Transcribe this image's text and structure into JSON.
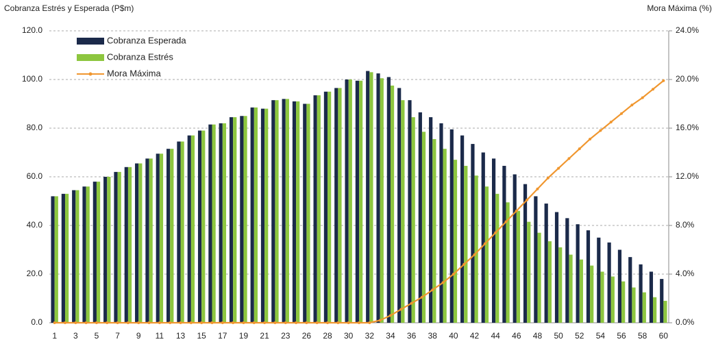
{
  "chart_data": {
    "type": "bar-line",
    "y_title": "Cobranza Estrés y Esperada (P$m)",
    "y2_title": "Mora Máxima (%)",
    "categories": [
      "1",
      null,
      "3",
      null,
      "5",
      null,
      "7",
      null,
      "9",
      null,
      "11",
      null,
      "13",
      null,
      "15",
      null,
      "17",
      null,
      "19",
      null,
      "21",
      null,
      "23",
      null,
      "26",
      null,
      "28",
      null,
      "30",
      null,
      "32",
      null,
      "34",
      null,
      "36",
      null,
      "38",
      null,
      "40",
      null,
      "42",
      null,
      "44",
      null,
      "46",
      null,
      "48",
      null,
      "50",
      null,
      "52",
      null,
      "54",
      null,
      "56",
      null,
      "58",
      null,
      "60"
    ],
    "series": [
      {
        "name": "Cobranza Esperada",
        "color": "#1b2a4a",
        "kind": "bar",
        "values": [
          52,
          53,
          54.5,
          56,
          58,
          60,
          62,
          64,
          65.5,
          67.5,
          69.5,
          71.5,
          74.5,
          77,
          79,
          81.5,
          82,
          84.5,
          85,
          88.5,
          88,
          91.5,
          92,
          91,
          90,
          93.5,
          95,
          96.5,
          100,
          99.5,
          103.5,
          102.5,
          101,
          96.5,
          91.5,
          86.5,
          84.5,
          82,
          79.5,
          77,
          73.5,
          70,
          67.5,
          64.5,
          61,
          57,
          52,
          49,
          45.5,
          43,
          40.5,
          38,
          35,
          33,
          30,
          27,
          24,
          21,
          18
        ]
      },
      {
        "name": "Cobranza Estrés",
        "color": "#8dc63f",
        "kind": "bar",
        "values": [
          52,
          53,
          54.5,
          56,
          58,
          60,
          62,
          64,
          65.5,
          67.5,
          69.5,
          71.5,
          74.5,
          77,
          79,
          81.5,
          82,
          84.5,
          85,
          88.5,
          88,
          91.5,
          92,
          91,
          90,
          93.5,
          95,
          96.5,
          100,
          99.5,
          103,
          100.5,
          97.5,
          91.5,
          84.5,
          78.5,
          75.5,
          71.5,
          67,
          64.5,
          60.5,
          56,
          53,
          49.5,
          46,
          41.5,
          37,
          33.5,
          31,
          28,
          26,
          23.5,
          21,
          19,
          17,
          14.5,
          12.5,
          10.5,
          9
        ]
      },
      {
        "name": "Mora Máxima",
        "color": "#f0962e",
        "kind": "line",
        "axis": "y2",
        "values": [
          0,
          0,
          0,
          0,
          0,
          0,
          0,
          0,
          0,
          0,
          0,
          0,
          0,
          0,
          0,
          0,
          0,
          0,
          0,
          0,
          0,
          0,
          0,
          0,
          0,
          0,
          0,
          0,
          0,
          0,
          0,
          0.2,
          0.6,
          1.1,
          1.6,
          2.1,
          2.7,
          3.3,
          4.0,
          4.8,
          5.6,
          6.5,
          7.4,
          8.3,
          9.2,
          10.1,
          11.0,
          11.9,
          12.7,
          13.5,
          14.3,
          15.1,
          15.8,
          16.5,
          17.2,
          17.9,
          18.5,
          19.2,
          19.9
        ]
      }
    ],
    "ylim": [
      0,
      120
    ],
    "yticks": [
      {
        "value": 0,
        "label": "0.0"
      },
      {
        "value": 20,
        "label": "20.0"
      },
      {
        "value": 40,
        "label": "40.0"
      },
      {
        "value": 60,
        "label": "60.0"
      },
      {
        "value": 80,
        "label": "80.0"
      },
      {
        "value": 100,
        "label": "100.0"
      },
      {
        "value": 120,
        "label": "120.0"
      }
    ],
    "y2lim": [
      0,
      24
    ],
    "y2ticks": [
      {
        "value": 0,
        "label": "0.0%"
      },
      {
        "value": 4,
        "label": "4.0%"
      },
      {
        "value": 8,
        "label": "8.0%"
      },
      {
        "value": 12,
        "label": "12.0%"
      },
      {
        "value": 16,
        "label": "16.0%"
      },
      {
        "value": 20,
        "label": "20.0%"
      },
      {
        "value": 24,
        "label": "24.0%"
      }
    ],
    "grid": true,
    "legend": "top-left"
  }
}
